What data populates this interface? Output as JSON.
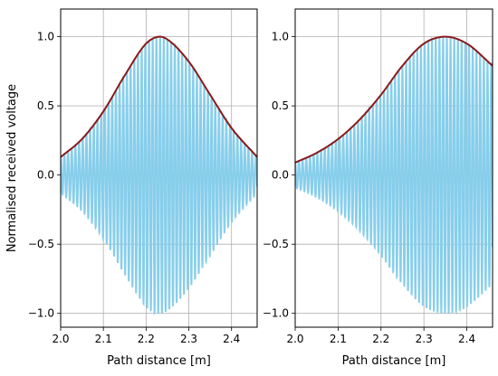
{
  "chart_data": [
    {
      "type": "line",
      "panel": "left",
      "xlabel": "Path distance [m]",
      "ylabel": "Normalised received voltage",
      "xlim": [
        2.0,
        2.46
      ],
      "ylim": [
        -1.1,
        1.2
      ],
      "x_ticks": [
        2.0,
        2.1,
        2.2,
        2.3,
        2.4
      ],
      "x_tick_labels": [
        "2.0",
        "2.1",
        "2.2",
        "2.3",
        "2.4"
      ],
      "y_ticks": [
        -1.0,
        -0.5,
        0.0,
        0.5,
        1.0
      ],
      "y_tick_labels": [
        "−1.0",
        "−0.5",
        "0.0",
        "0.5",
        "1.0"
      ],
      "grid": true,
      "series": [
        {
          "style": "oscillating signal",
          "color": "#87ceeb",
          "oscillation_period_m": 0.00862,
          "envelope": {
            "x": [
              2.0,
              2.05,
              2.1,
              2.15,
              2.2,
              2.23,
              2.25,
              2.3,
              2.35,
              2.4,
              2.46
            ],
            "y": [
              0.13,
              0.26,
              0.46,
              0.72,
              0.95,
              1.0,
              0.98,
              0.82,
              0.58,
              0.34,
              0.13
            ]
          }
        },
        {
          "style": "envelope",
          "color": "#8b1a1a",
          "x": [
            2.0,
            2.05,
            2.1,
            2.15,
            2.2,
            2.23,
            2.25,
            2.3,
            2.35,
            2.4,
            2.46
          ],
          "y": [
            0.13,
            0.26,
            0.46,
            0.72,
            0.95,
            1.0,
            0.98,
            0.82,
            0.58,
            0.34,
            0.13
          ]
        }
      ]
    },
    {
      "type": "line",
      "panel": "right",
      "xlabel": "Path distance [m]",
      "ylabel": "",
      "xlim": [
        2.0,
        2.46
      ],
      "ylim": [
        -1.1,
        1.2
      ],
      "x_ticks": [
        2.0,
        2.1,
        2.2,
        2.3,
        2.4
      ],
      "x_tick_labels": [
        "2.0",
        "2.1",
        "2.2",
        "2.3",
        "2.4"
      ],
      "y_ticks": [
        -1.0,
        -0.5,
        0.0,
        0.5,
        1.0
      ],
      "y_tick_labels": [
        "−1.0",
        "−0.5",
        "0.0",
        "0.5",
        "1.0"
      ],
      "grid": true,
      "series": [
        {
          "style": "oscillating signal",
          "color": "#87ceeb",
          "oscillation_period_m": 0.00862,
          "envelope": {
            "x": [
              2.0,
              2.05,
              2.1,
              2.15,
              2.2,
              2.25,
              2.3,
              2.35,
              2.4,
              2.46
            ],
            "y": [
              0.09,
              0.16,
              0.26,
              0.4,
              0.58,
              0.79,
              0.95,
              1.0,
              0.95,
              0.79
            ]
          }
        },
        {
          "style": "envelope",
          "color": "#8b1a1a",
          "x": [
            2.0,
            2.05,
            2.1,
            2.15,
            2.2,
            2.25,
            2.3,
            2.35,
            2.4,
            2.46
          ],
          "y": [
            0.09,
            0.16,
            0.26,
            0.4,
            0.58,
            0.79,
            0.95,
            1.0,
            0.95,
            0.79
          ]
        }
      ]
    }
  ]
}
